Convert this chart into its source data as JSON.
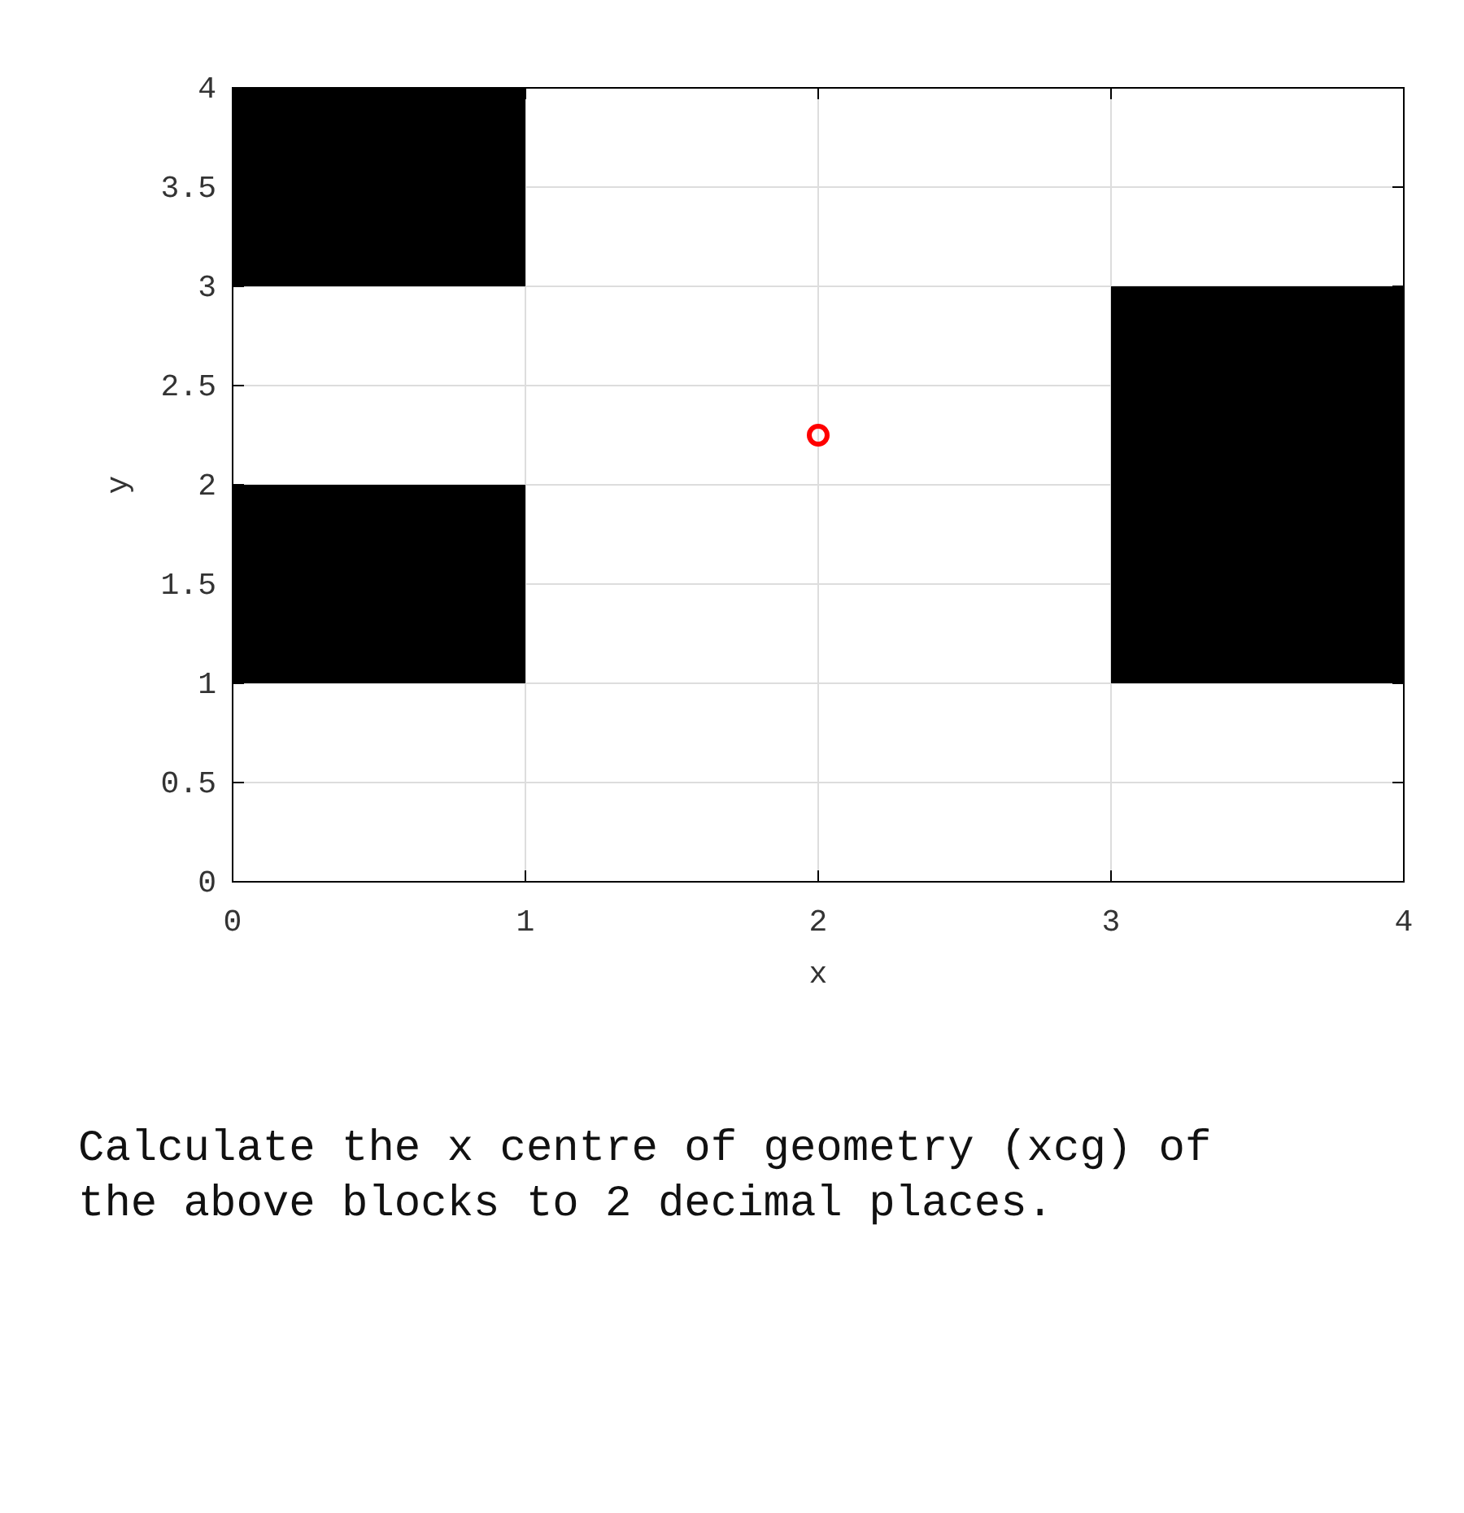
{
  "chart_data": {
    "type": "bar",
    "xlabel": "x",
    "ylabel": "y",
    "xlim": [
      0,
      4
    ],
    "ylim": [
      0,
      4
    ],
    "xticks": [
      0,
      1,
      2,
      3,
      4
    ],
    "yticks": [
      0,
      0.5,
      1,
      1.5,
      2,
      2.5,
      3,
      3.5,
      4
    ],
    "grid": true,
    "series": [
      {
        "color": "#000000",
        "x": [
          0.5,
          3.5
        ],
        "base": [
          1,
          1
        ],
        "values": [
          1,
          2
        ]
      },
      {
        "color": "#000000",
        "x": [
          0.5
        ],
        "base": [
          3
        ],
        "values": [
          1
        ]
      },
      {
        "type": "scatter",
        "color": "#ff0000",
        "marker": "circle",
        "x": [
          2
        ],
        "values": [
          2.25
        ]
      }
    ],
    "annotations": [
      "Calculate the x centre of geometry (xcg) of the above blocks to 2 decimal places."
    ]
  }
}
